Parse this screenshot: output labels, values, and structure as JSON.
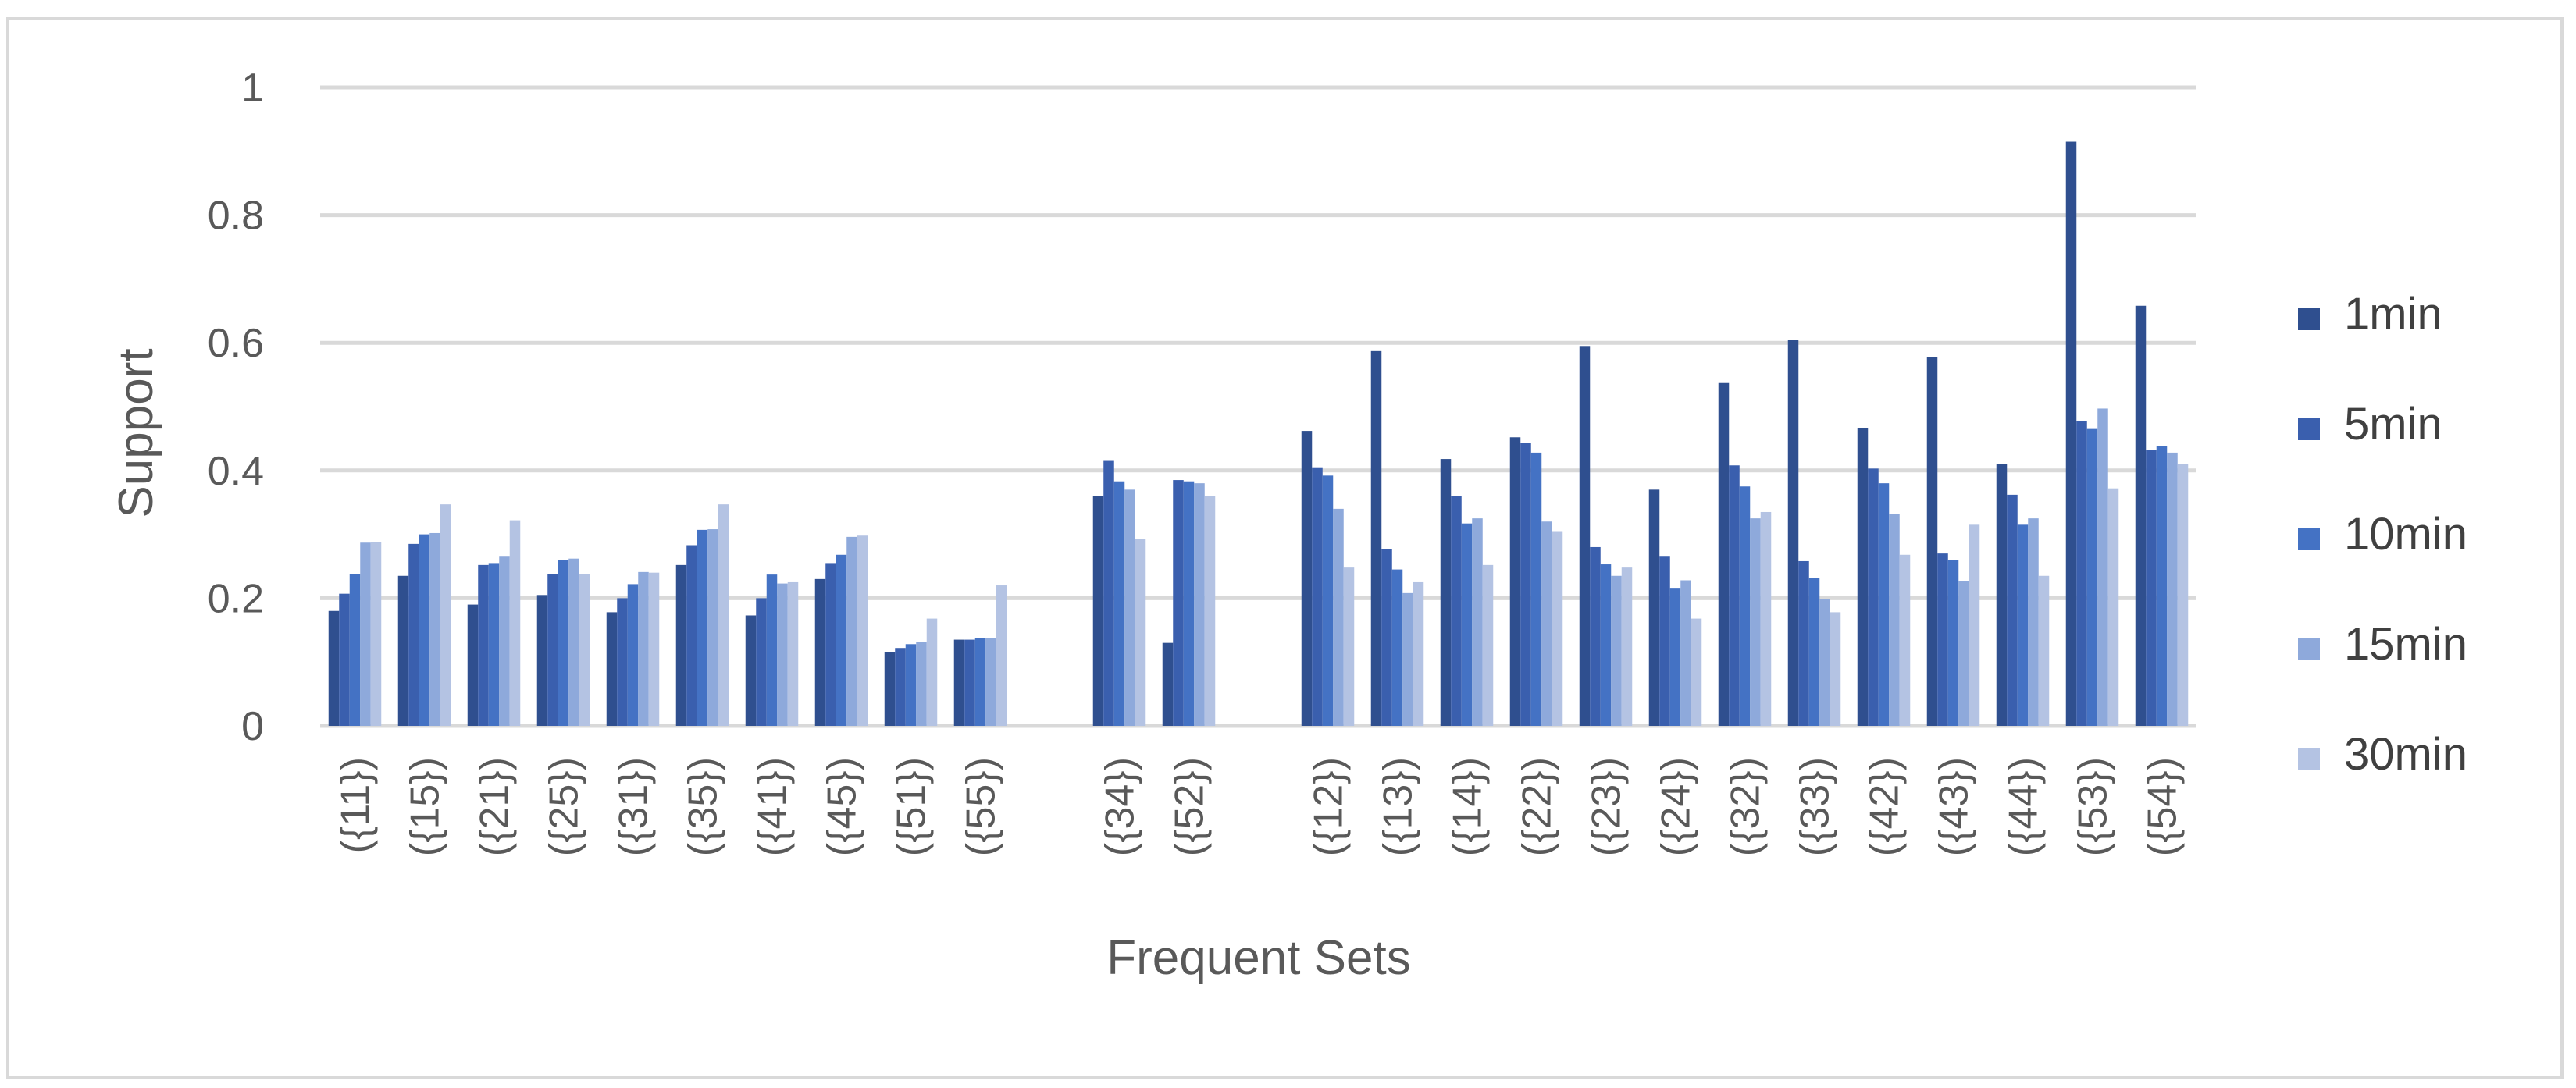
{
  "chart_data": {
    "type": "bar",
    "title": "",
    "xlabel": "Frequent Sets",
    "ylabel": "Support",
    "ylim": [
      0,
      1
    ],
    "yticks": [
      "0",
      "0.2",
      "0.4",
      "0.6",
      "0.8",
      "1"
    ],
    "grid": true,
    "legend": "right",
    "groups": [
      [
        "({11})",
        "({15})",
        "({21})",
        "({25})",
        "({31})",
        "({35})",
        "({41})",
        "({45})",
        "({51})",
        "({55})"
      ],
      [
        "({34})",
        "({52})"
      ],
      [
        "({12})",
        "({13})",
        "({14})",
        "({22})",
        "({23})",
        "({24})",
        "({32})",
        "({33})",
        "({42})",
        "({43})",
        "({44})",
        "({53})",
        "({54})"
      ]
    ],
    "categories": [
      "({11})",
      "({15})",
      "({21})",
      "({25})",
      "({31})",
      "({35})",
      "({41})",
      "({45})",
      "({51})",
      "({55})",
      "({34})",
      "({52})",
      "({12})",
      "({13})",
      "({14})",
      "({22})",
      "({23})",
      "({24})",
      "({32})",
      "({33})",
      "({42})",
      "({43})",
      "({44})",
      "({53})",
      "({54})"
    ],
    "series": [
      {
        "name": "1min",
        "color": "#2f4f8f",
        "values": [
          0.18,
          0.235,
          0.19,
          0.205,
          0.178,
          0.252,
          0.173,
          0.23,
          0.115,
          0.135,
          0.36,
          0.13,
          0.462,
          0.587,
          0.418,
          0.452,
          0.595,
          0.37,
          0.537,
          0.605,
          0.467,
          0.578,
          0.41,
          0.915,
          0.658
        ]
      },
      {
        "name": "5min",
        "color": "#3a5fae",
        "values": [
          0.207,
          0.285,
          0.252,
          0.238,
          0.2,
          0.283,
          0.2,
          0.255,
          0.122,
          0.135,
          0.415,
          0.385,
          0.405,
          0.277,
          0.36,
          0.443,
          0.28,
          0.265,
          0.408,
          0.258,
          0.403,
          0.27,
          0.362,
          0.478,
          0.432
        ]
      },
      {
        "name": "10min",
        "color": "#4472c4",
        "values": [
          0.238,
          0.3,
          0.255,
          0.26,
          0.222,
          0.307,
          0.237,
          0.268,
          0.128,
          0.137,
          0.383,
          0.383,
          0.392,
          0.245,
          0.317,
          0.428,
          0.253,
          0.215,
          0.375,
          0.232,
          0.38,
          0.26,
          0.315,
          0.465,
          0.438
        ]
      },
      {
        "name": "15min",
        "color": "#8ea9db",
        "values": [
          0.287,
          0.302,
          0.265,
          0.262,
          0.241,
          0.308,
          0.223,
          0.296,
          0.131,
          0.138,
          0.37,
          0.38,
          0.34,
          0.208,
          0.325,
          0.32,
          0.235,
          0.228,
          0.325,
          0.198,
          0.332,
          0.227,
          0.325,
          0.497,
          0.428
        ]
      },
      {
        "name": "30min",
        "color": "#b4c3e3",
        "values": [
          0.288,
          0.347,
          0.322,
          0.238,
          0.24,
          0.347,
          0.225,
          0.298,
          0.168,
          0.22,
          0.293,
          0.36,
          0.248,
          0.225,
          0.252,
          0.305,
          0.248,
          0.168,
          0.335,
          0.178,
          0.268,
          0.315,
          0.235,
          0.372,
          0.41
        ]
      }
    ]
  }
}
